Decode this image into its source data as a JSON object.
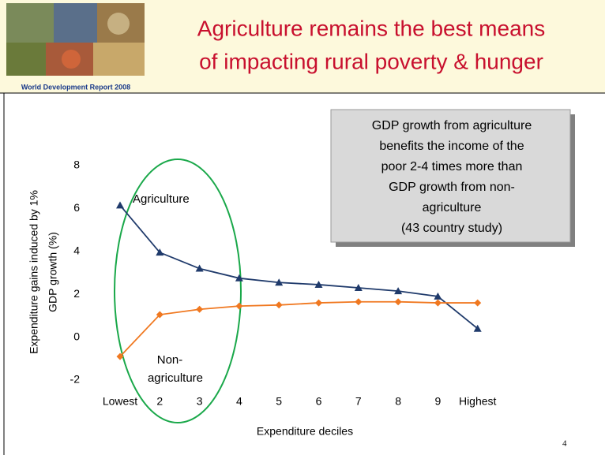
{
  "header": {
    "report": "World Development Report 2008",
    "title_lines": [
      "Agriculture remains the best means",
      "of impacting rural poverty & hunger"
    ]
  },
  "callout": [
    "GDP growth from agriculture",
    "benefits the income of the",
    "poor 2-4 times more than",
    "GDP growth from non-",
    "agriculture",
    "(43 country study)"
  ],
  "page_number": "4",
  "chart_data": {
    "type": "line",
    "x_label": "Expenditure deciles",
    "y_label_lines": [
      "Expenditure gains induced by 1%",
      "GDP growth (%)"
    ],
    "categories": [
      "Lowest",
      "2",
      "3",
      "4",
      "5",
      "6",
      "7",
      "8",
      "9",
      "Highest"
    ],
    "series": [
      {
        "name": "Agriculture",
        "color": "#1f3a6b",
        "marker": "triangle",
        "values": [
          6.15,
          3.95,
          3.2,
          2.75,
          2.55,
          2.45,
          2.3,
          2.15,
          1.9,
          0.4
        ]
      },
      {
        "name": "Non-agriculture",
        "color": "#f07820",
        "marker": "diamond",
        "values": [
          -0.9,
          1.05,
          1.3,
          1.45,
          1.5,
          1.6,
          1.65,
          1.65,
          1.6,
          1.6
        ]
      }
    ],
    "annotations": [
      "Agriculture",
      "Non-",
      "agriculture"
    ],
    "ylim": [
      -2,
      8
    ],
    "yticks": [
      -2,
      0,
      2,
      4,
      6,
      8
    ],
    "grid": false
  }
}
